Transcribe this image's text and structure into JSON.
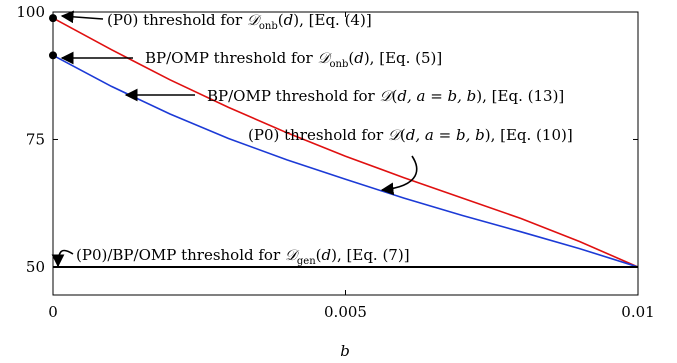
{
  "chart_data": {
    "type": "line",
    "title": "",
    "xlabel": "b",
    "ylabel": "",
    "xlim": [
      0,
      0.01
    ],
    "ylim": [
      44.5,
      100
    ],
    "xticks": [
      0,
      0.005,
      0.01
    ],
    "xtick_labels": [
      "0",
      "0.005",
      "0.01"
    ],
    "yticks": [
      50,
      75,
      100
    ],
    "ytick_labels": [
      "50",
      "75",
      "100"
    ],
    "grid": false,
    "legend": "none",
    "series": [
      {
        "color": "#e01010",
        "x": [
          0,
          0.001,
          0.002,
          0.003,
          0.004,
          0.005,
          0.006,
          0.007,
          0.008,
          0.009,
          0.01
        ],
        "y": [
          98.8,
          92.6,
          86.7,
          81.3,
          76.3,
          71.7,
          67.5,
          63.5,
          59.5,
          55.0,
          50.0
        ]
      },
      {
        "color": "#1c3ad6",
        "x": [
          0,
          0.001,
          0.002,
          0.003,
          0.004,
          0.005,
          0.006,
          0.007,
          0.008,
          0.009,
          0.01
        ],
        "y": [
          91.5,
          85.4,
          80.0,
          75.2,
          71.0,
          67.2,
          63.5,
          60.1,
          56.9,
          53.6,
          50.0
        ]
      },
      {
        "color": "#000000",
        "x": [
          0,
          0.01
        ],
        "y": [
          50.0,
          50.0
        ]
      }
    ],
    "points": [
      {
        "x": 0,
        "y": 98.8
      },
      {
        "x": 0,
        "y": 91.5
      }
    ],
    "annotations": [
      {
        "text": "(P0) threshold for 𝒟onb(d), [Eq. (4)]"
      },
      {
        "text": "BP/OMP threshold for 𝒟onb(d), [Eq. (5)]"
      },
      {
        "text": "BP/OMP threshold for 𝒟(d, a = b, b), [Eq. (13)]"
      },
      {
        "text": "(P0) threshold for 𝒟(d, a = b, b), [Eq. (10)]"
      },
      {
        "text": "(P0)/BP/OMP threshold for 𝒟gen(d), [Eq. (7)]"
      }
    ]
  }
}
